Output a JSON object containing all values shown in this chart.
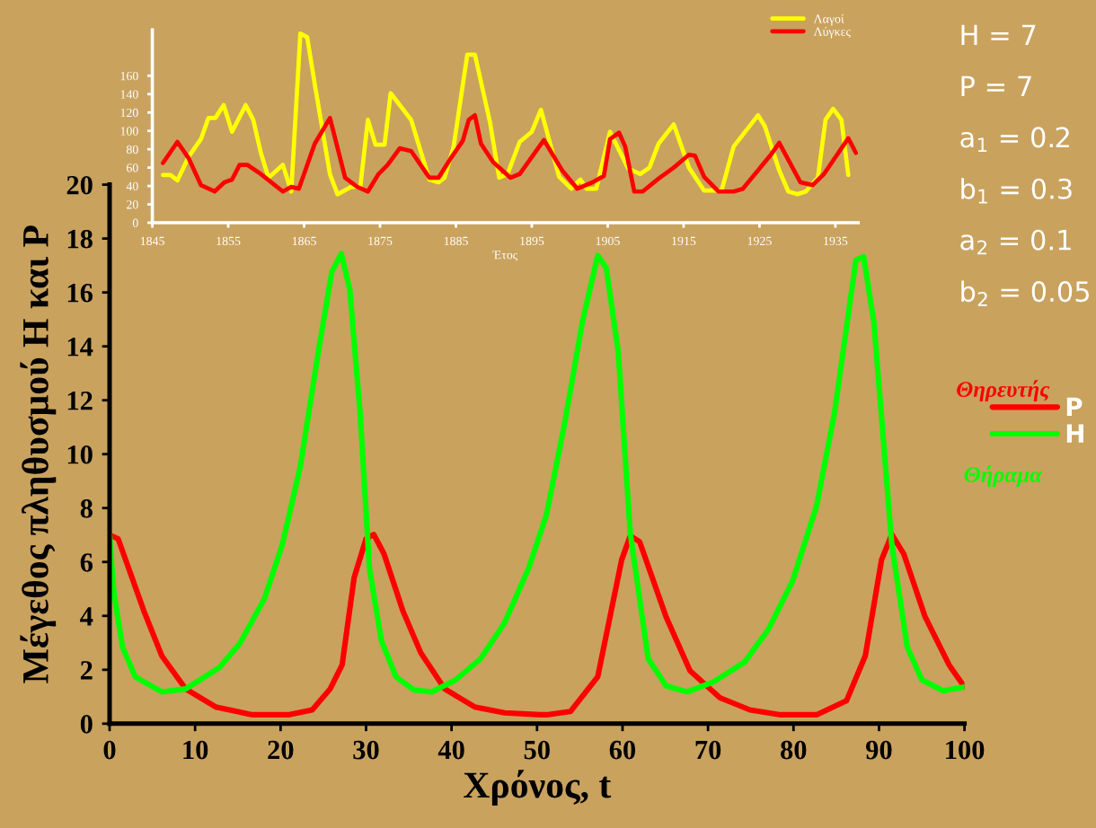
{
  "chart_data": [
    {
      "type": "line",
      "xlabel": "Έτος",
      "legend": "top right",
      "grid": false,
      "marker": "none",
      "line_style": "solid",
      "xlim": [
        1845,
        1938
      ],
      "xticks": [
        1845,
        1855,
        1865,
        1875,
        1885,
        1895,
        1905,
        1915,
        1925,
        1935
      ],
      "ylim": [
        0,
        210
      ],
      "yticks": [
        0,
        20,
        40,
        60,
        80,
        100,
        120,
        140,
        160
      ],
      "series": [
        {
          "name": "Λαγοί",
          "color": "#ffff00",
          "x": [
            1846.4,
            1847.4,
            1848.3,
            1849.8,
            1851.4,
            1852.4,
            1853.3,
            1854.4,
            1855.5,
            1857.3,
            1858.3,
            1859.3,
            1860.3,
            1862.2,
            1863.3,
            1864.5,
            1865.4,
            1866.4,
            1868.4,
            1869.4,
            1871.2,
            1872.4,
            1873.4,
            1874.4,
            1875.6,
            1876.4,
            1879.1,
            1881.5,
            1882.7,
            1883.5,
            1884.7,
            1886.5,
            1887.5,
            1889.5,
            1890.7,
            1891.8,
            1893.4,
            1895.0,
            1896.2,
            1898.6,
            1900.2,
            1901.4,
            1902.2,
            1903.5,
            1905.3,
            1906.5,
            1907.7,
            1909.3,
            1910.5,
            1911.7,
            1913.7,
            1915.7,
            1917.7,
            1920.0,
            1921.6,
            1924.8,
            1925.7,
            1927.6,
            1928.8,
            1930.0,
            1931.1,
            1932.7,
            1933.7,
            1934.7,
            1935.8,
            1936.7
          ],
          "values": [
            52,
            52,
            46,
            72,
            91,
            114,
            114,
            128,
            99,
            128,
            112,
            76,
            49,
            63,
            34,
            206,
            202,
            151,
            53,
            31,
            39,
            39,
            112,
            85,
            85,
            141,
            112,
            47,
            44,
            49,
            83,
            183,
            183,
            109,
            49,
            53,
            88,
            99,
            123,
            50,
            37,
            47,
            37,
            37,
            99,
            79,
            59,
            53,
            60,
            86,
            107,
            60,
            35,
            35,
            83,
            117,
            105,
            57,
            34,
            31,
            34,
            49,
            112,
            124,
            112,
            52
          ]
        },
        {
          "name": "Λύγκες",
          "color": "#ff0000",
          "x": [
            1846.4,
            1848.3,
            1849.8,
            1851.4,
            1853.2,
            1854.5,
            1855.5,
            1856.5,
            1857.5,
            1859.3,
            1862.2,
            1863.3,
            1864.3,
            1866.4,
            1868.4,
            1870.4,
            1872.0,
            1873.4,
            1874.8,
            1876.0,
            1877.6,
            1879.1,
            1881.5,
            1882.7,
            1884.3,
            1885.9,
            1886.7,
            1887.5,
            1888.3,
            1889.9,
            1892.2,
            1893.4,
            1896.6,
            1899.0,
            1901.0,
            1903.0,
            1904.5,
            1905.3,
            1906.5,
            1907.3,
            1908.5,
            1909.6,
            1911.7,
            1913.7,
            1915.7,
            1916.5,
            1917.7,
            1919.6,
            1921.6,
            1922.8,
            1924.8,
            1926.4,
            1927.6,
            1930.4,
            1932.0,
            1933.5,
            1936.7,
            1937.7
          ],
          "values": [
            65,
            88,
            70,
            41,
            34,
            44,
            47,
            63,
            63,
            53,
            34,
            39,
            37,
            86,
            114,
            49,
            39,
            34,
            53,
            63,
            81,
            78,
            49,
            49,
            70,
            89,
            112,
            117,
            86,
            66,
            49,
            53,
            90,
            57,
            37,
            44,
            51,
            91,
            98,
            83,
            34,
            34,
            48,
            60,
            74,
            73,
            50,
            34,
            34,
            37,
            57,
            73,
            87,
            44,
            41,
            53,
            92,
            76
          ]
        }
      ]
    },
    {
      "type": "line",
      "xlabel": "Χρόνος, t",
      "ylabel": "Μέγεθος πληθυσμού Η και P",
      "legend": "right",
      "grid": false,
      "marker": "none",
      "line_style": "solid",
      "xlim": [
        0,
        100
      ],
      "xticks": [
        0,
        10,
        20,
        30,
        40,
        50,
        60,
        70,
        80,
        90,
        100
      ],
      "ylim": [
        0,
        20
      ],
      "yticks": [
        0,
        2,
        4,
        6,
        8,
        10,
        12,
        14,
        16,
        18,
        20
      ],
      "annotations": [
        "Θηρευτής",
        "Θήραμα",
        "H = 7",
        "P = 7",
        "a$_{1}$ = 0.2",
        "b$_{1}$ = 0.3",
        "a$_{2}$ = 0.1",
        "b$_{2}$ = 0.05"
      ],
      "series": [
        {
          "name": "P",
          "color": "#ff0000",
          "x": [
            0,
            1,
            4,
            6.1,
            8.9,
            12.4,
            16.7,
            20.9,
            23.7,
            25.8,
            27.2,
            28.6,
            30,
            30.9,
            32.1,
            34.3,
            36.4,
            39.2,
            42.7,
            46.2,
            50.4,
            51.1,
            53.9,
            57.1,
            59.9,
            60.9,
            62.0,
            65.1,
            67.9,
            71.4,
            74.9,
            78.5,
            82.7,
            86.2,
            88.4,
            90.3,
            91.5,
            92.9,
            95.4,
            98.2,
            100
          ],
          "values": [
            7.0,
            6.86,
            4.19,
            2.52,
            1.29,
            0.62,
            0.33,
            0.33,
            0.51,
            1.29,
            2.18,
            5.41,
            6.86,
            7.02,
            6.3,
            4.19,
            2.63,
            1.29,
            0.62,
            0.4,
            0.33,
            0.33,
            0.45,
            1.74,
            6.08,
            6.97,
            6.75,
            3.96,
            1.96,
            0.96,
            0.51,
            0.33,
            0.33,
            0.85,
            2.52,
            6.08,
            7.02,
            6.3,
            3.96,
            2.18,
            1.36
          ]
        },
        {
          "name": "H",
          "color": "#00ff00",
          "x": [
            0,
            0.5,
            1.5,
            3,
            6.1,
            8.9,
            12.8,
            15.2,
            18.1,
            20.2,
            22.3,
            24.4,
            26,
            27.1,
            28.1,
            29.3,
            30.4,
            31.8,
            33.5,
            35.6,
            37.7,
            40.5,
            43.4,
            46.2,
            49,
            51.1,
            53.2,
            55.3,
            57.1,
            58.1,
            59.5,
            60.9,
            63.0,
            65.1,
            67.6,
            70.7,
            74.3,
            77.1,
            79.9,
            82.7,
            84.8,
            87.3,
            88.2,
            89.4,
            91.5,
            93.3,
            95.0,
            97.5,
            100
          ],
          "values": [
            7.0,
            4.85,
            2.85,
            1.74,
            1.18,
            1.29,
            2.07,
            2.96,
            4.63,
            6.64,
            9.53,
            13.76,
            16.77,
            17.44,
            16.1,
            11.54,
            5.75,
            3.07,
            1.74,
            1.25,
            1.18,
            1.63,
            2.41,
            3.74,
            5.75,
            7.75,
            11.1,
            14.9,
            17.37,
            16.9,
            13.8,
            7.08,
            2.41,
            1.4,
            1.18,
            1.56,
            2.29,
            3.52,
            5.3,
            8.08,
            11.54,
            17.2,
            17.33,
            14.9,
            6.64,
            2.85,
            1.63,
            1.22,
            1.36
          ]
        }
      ]
    }
  ]
}
